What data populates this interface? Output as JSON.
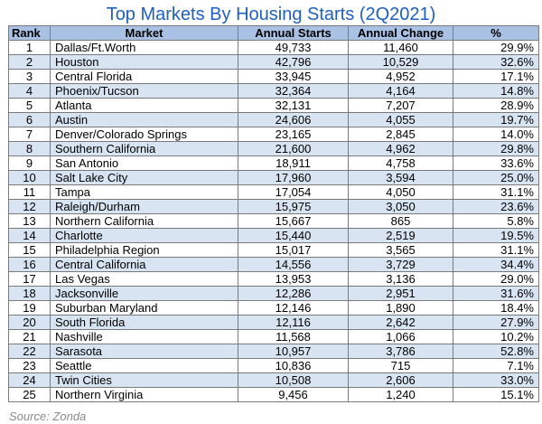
{
  "title": "Top Markets By Housing Starts (2Q2021)",
  "headers": [
    "Rank",
    "Market",
    "Annual Starts",
    "Annual Change",
    "%"
  ],
  "rows": [
    {
      "rank": "1",
      "market": "Dallas/Ft.Worth",
      "starts": "49,733",
      "change": "11,460",
      "pct": "29.9%"
    },
    {
      "rank": "2",
      "market": "Houston",
      "starts": "42,796",
      "change": "10,529",
      "pct": "32.6%"
    },
    {
      "rank": "3",
      "market": "Central Florida",
      "starts": "33,945",
      "change": "4,952",
      "pct": "17.1%"
    },
    {
      "rank": "4",
      "market": "Phoenix/Tucson",
      "starts": "32,364",
      "change": "4,164",
      "pct": "14.8%"
    },
    {
      "rank": "5",
      "market": "Atlanta",
      "starts": "32,131",
      "change": "7,207",
      "pct": "28.9%"
    },
    {
      "rank": "6",
      "market": "Austin",
      "starts": "24,606",
      "change": "4,055",
      "pct": "19.7%"
    },
    {
      "rank": "7",
      "market": "Denver/Colorado Springs",
      "starts": "23,165",
      "change": "2,845",
      "pct": "14.0%"
    },
    {
      "rank": "8",
      "market": "Southern California",
      "starts": "21,600",
      "change": "4,962",
      "pct": "29.8%"
    },
    {
      "rank": "9",
      "market": "San Antonio",
      "starts": "18,911",
      "change": "4,758",
      "pct": "33.6%"
    },
    {
      "rank": "10",
      "market": "Salt Lake City",
      "starts": "17,960",
      "change": "3,594",
      "pct": "25.0%"
    },
    {
      "rank": "11",
      "market": "Tampa",
      "starts": "17,054",
      "change": "4,050",
      "pct": "31.1%"
    },
    {
      "rank": "12",
      "market": "Raleigh/Durham",
      "starts": "15,975",
      "change": "3,050",
      "pct": "23.6%"
    },
    {
      "rank": "13",
      "market": "Northern California",
      "starts": "15,667",
      "change": "865",
      "pct": "5.8%"
    },
    {
      "rank": "14",
      "market": "Charlotte",
      "starts": "15,440",
      "change": "2,519",
      "pct": "19.5%"
    },
    {
      "rank": "15",
      "market": "Philadelphia Region",
      "starts": "15,017",
      "change": "3,565",
      "pct": "31.1%"
    },
    {
      "rank": "16",
      "market": "Central California",
      "starts": "14,556",
      "change": "3,729",
      "pct": "34.4%"
    },
    {
      "rank": "17",
      "market": "Las Vegas",
      "starts": "13,953",
      "change": "3,136",
      "pct": "29.0%"
    },
    {
      "rank": "18",
      "market": "Jacksonville",
      "starts": "12,286",
      "change": "2,951",
      "pct": "31.6%"
    },
    {
      "rank": "19",
      "market": "Suburban Maryland",
      "starts": "12,146",
      "change": "1,890",
      "pct": "18.4%"
    },
    {
      "rank": "20",
      "market": "South Florida",
      "starts": "12,116",
      "change": "2,642",
      "pct": "27.9%"
    },
    {
      "rank": "21",
      "market": "Nashville",
      "starts": "11,568",
      "change": "1,066",
      "pct": "10.2%"
    },
    {
      "rank": "22",
      "market": "Sarasota",
      "starts": "10,957",
      "change": "3,786",
      "pct": "52.8%"
    },
    {
      "rank": "23",
      "market": "Seattle",
      "starts": "10,836",
      "change": "715",
      "pct": "7.1%"
    },
    {
      "rank": "24",
      "market": "Twin Cities",
      "starts": "10,508",
      "change": "2,606",
      "pct": "33.0%"
    },
    {
      "rank": "25",
      "market": "Northern Virginia",
      "starts": "9,456",
      "change": "1,240",
      "pct": "15.1%"
    }
  ],
  "source": "Source: Zonda",
  "colors": {
    "title": "#1f5fbf",
    "header_bg": "#a9c1e3",
    "stripe_bg": "#d9e4f3",
    "source_text": "#8a8a8a"
  }
}
